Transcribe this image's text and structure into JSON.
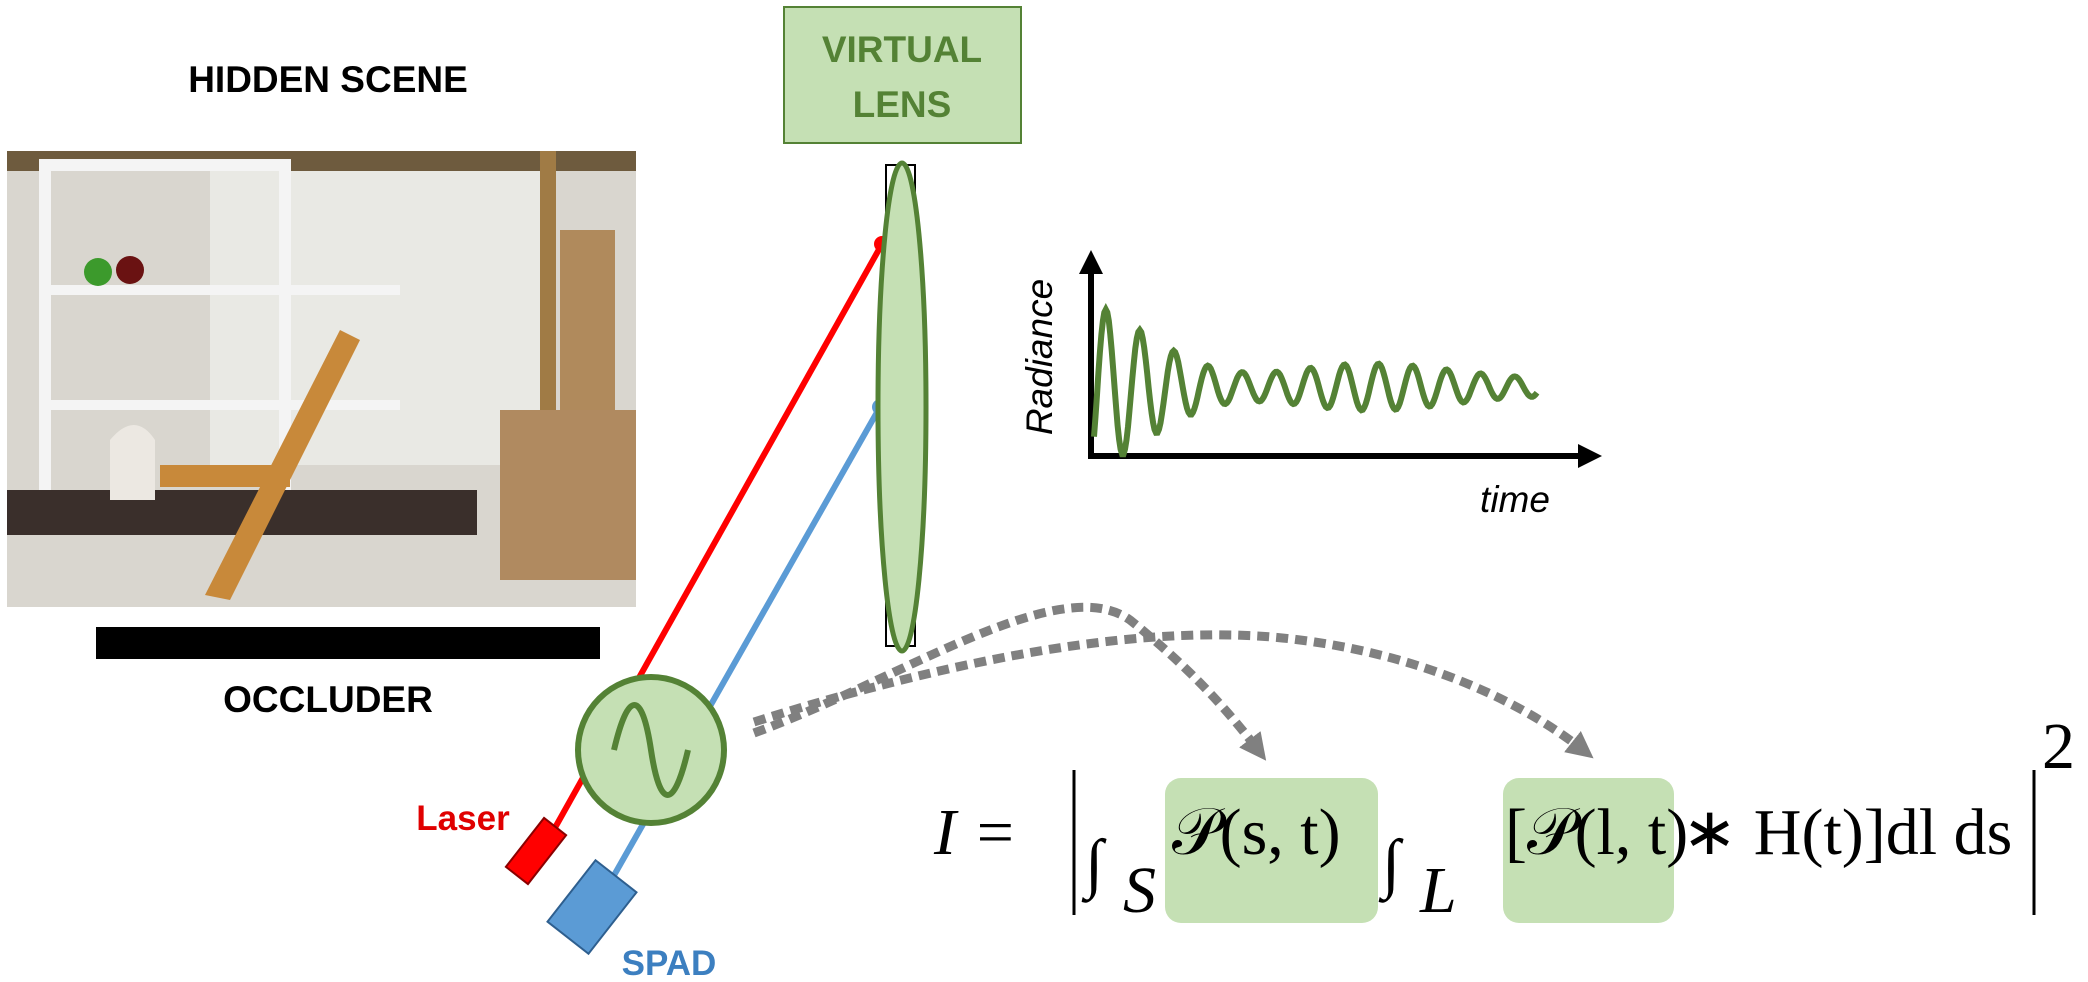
{
  "scene_label": "HIDDEN SCENE",
  "occluder_label": "OCCLUDER",
  "lens_label": [
    "VIRTUAL",
    "LENS"
  ],
  "plot": {
    "y_label": "Radiance",
    "x_label": "time"
  },
  "laser_label": "Laser",
  "spad_label": "SPAD",
  "equation": {
    "lhs": "I =",
    "int1": "∫",
    "sub1": "S",
    "term1": "𝒫(s, t)",
    "int2": "∫",
    "sub2": "L",
    "term2": "[𝒫(l, t)",
    "rest": "∗ H(t)]dl ds",
    "power": "2"
  }
}
